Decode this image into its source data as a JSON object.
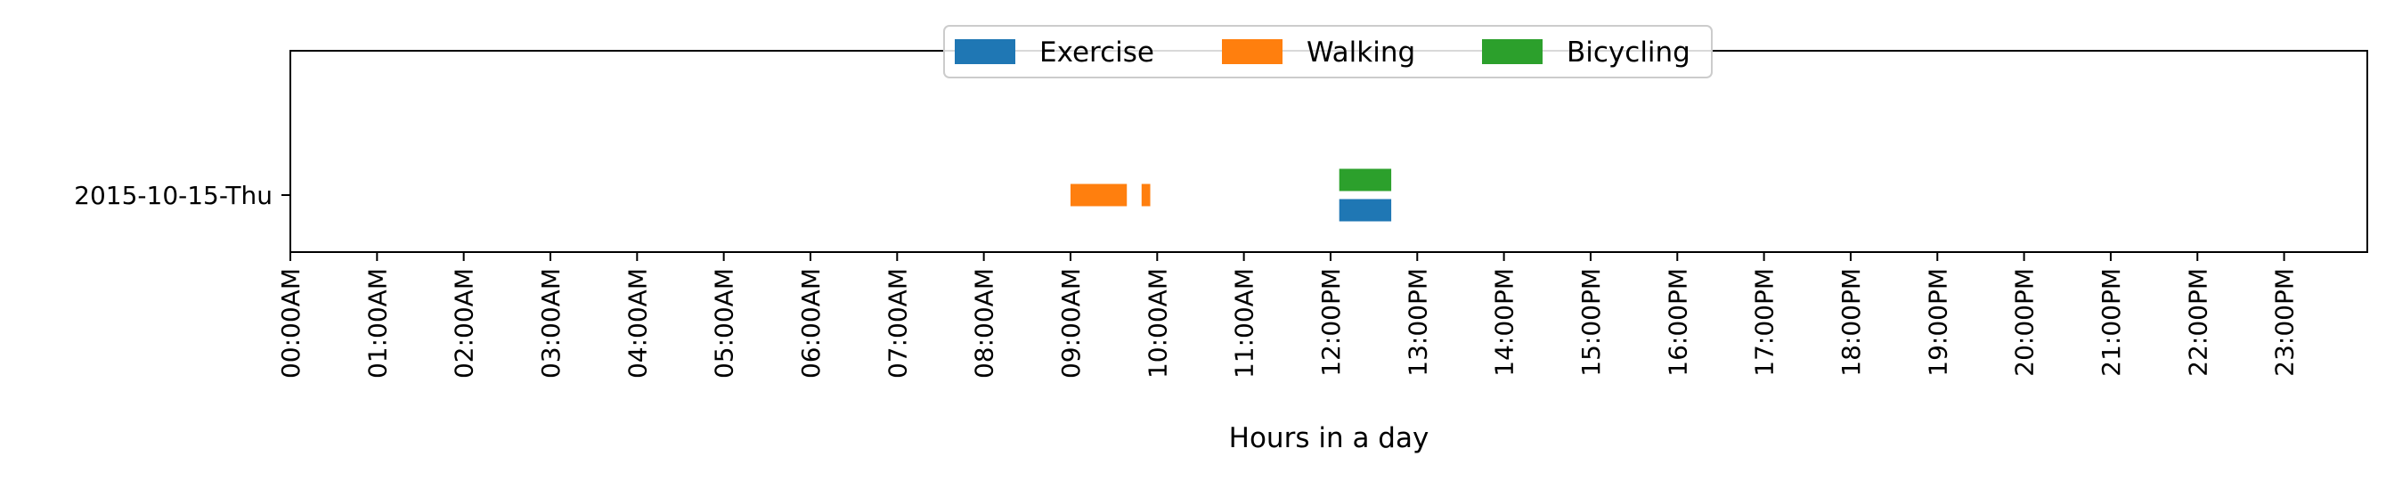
{
  "chart_data": {
    "type": "bar",
    "orientation": "horizontal-timeline",
    "xlabel": "Hours in a day",
    "ylabel": "",
    "xlim": [
      0,
      24
    ],
    "grid": false,
    "legend_placement": "upper-center",
    "categories": [
      "2015-10-15-Thu"
    ],
    "x_ticks": [
      "00:00AM",
      "01:00AM",
      "02:00AM",
      "03:00AM",
      "04:00AM",
      "05:00AM",
      "06:00AM",
      "07:00AM",
      "08:00AM",
      "09:00AM",
      "10:00AM",
      "11:00AM",
      "12:00PM",
      "13:00PM",
      "14:00PM",
      "15:00PM",
      "16:00PM",
      "17:00PM",
      "18:00PM",
      "19:00PM",
      "20:00PM",
      "21:00PM",
      "22:00PM",
      "23:00PM"
    ],
    "series": [
      {
        "name": "Exercise",
        "color": "#1f77b4",
        "segments": [
          {
            "category": "2015-10-15-Thu",
            "start": 12.1,
            "end": 12.7
          }
        ]
      },
      {
        "name": "Walking",
        "color": "#ff7f0e",
        "segments": [
          {
            "category": "2015-10-15-Thu",
            "start": 9.0,
            "end": 9.65
          },
          {
            "category": "2015-10-15-Thu",
            "start": 9.82,
            "end": 9.92
          }
        ]
      },
      {
        "name": "Bicycling",
        "color": "#2ca02c",
        "segments": [
          {
            "category": "2015-10-15-Thu",
            "start": 12.1,
            "end": 12.7
          }
        ]
      }
    ]
  }
}
